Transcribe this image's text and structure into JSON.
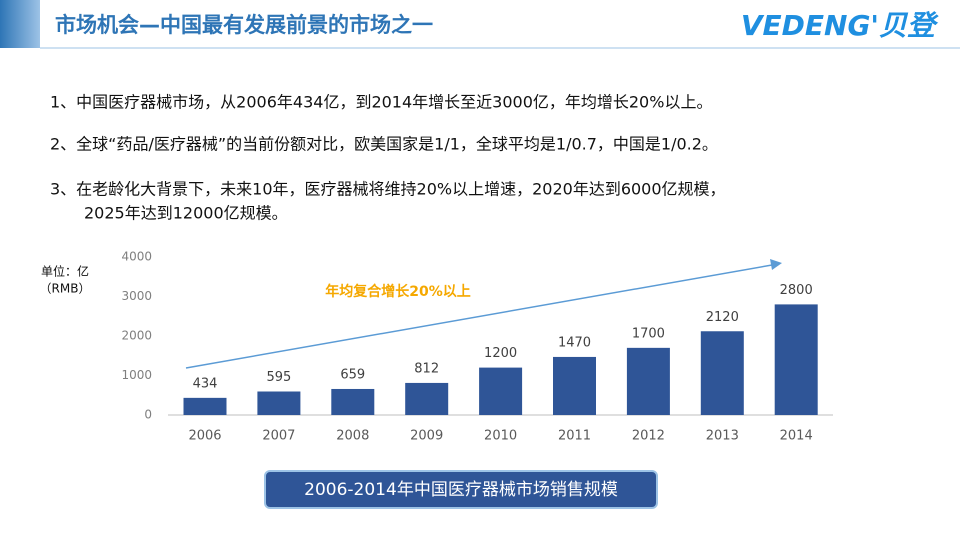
{
  "header": {
    "title": "市场机会—中国最有发展前景的市场之一",
    "logo": "VEDENG'贝登"
  },
  "bullets": [
    [
      "1、中国医疗器械市场，从2006年434亿，到2014年增长至近3000亿，年均增长20%以上。"
    ],
    [
      "2、全球“药品/医疗器械”的当前份额对比，欧美国家是1/1，全球平均是1/0.7，中国是1/0.2。"
    ],
    [
      "3、在老龄化大背景下，未来10年，医疗器械将维持20%以上增速，2020年达到6000亿规模，",
      "2025年达到12000亿规模。"
    ]
  ],
  "chart_data": {
    "type": "bar",
    "title": "2006-2014年中国医疗器械市场销售规模",
    "y_label": [
      "单位：亿",
      "（RMB）"
    ],
    "annotation": "年均复合增长20%以上",
    "categories": [
      "2006",
      "2007",
      "2008",
      "2009",
      "2010",
      "2011",
      "2012",
      "2013",
      "2014"
    ],
    "values": [
      434,
      595,
      659,
      812,
      1200,
      1470,
      1700,
      2120,
      2800
    ],
    "color": "#2f5597",
    "ylim": [
      0,
      4000
    ],
    "yticks": [
      0,
      1000,
      2000,
      3000,
      4000
    ],
    "grid": false
  }
}
